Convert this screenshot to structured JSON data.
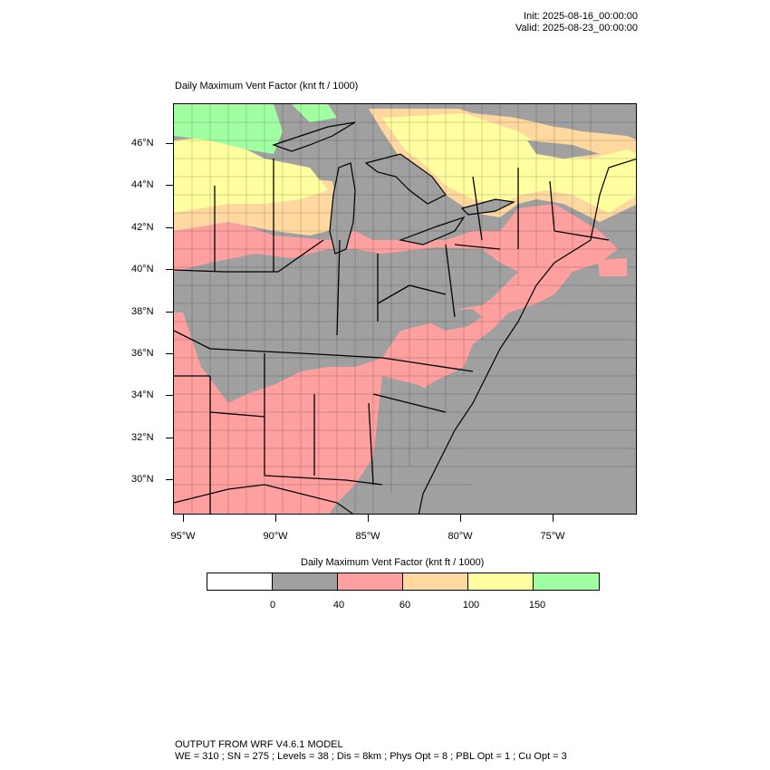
{
  "header": {
    "init": "Init: 2025-08-16_00:00:00",
    "valid": "Valid: 2025-08-23_00:00:00"
  },
  "map": {
    "title": "Daily Maximum Vent Factor   (knt ft / 1000)",
    "lat_labels": [
      "46°N",
      "44°N",
      "42°N",
      "40°N",
      "38°N",
      "36°N",
      "34°N",
      "32°N",
      "30°N"
    ],
    "lon_labels": [
      "95°W",
      "90°W",
      "85°W",
      "80°W",
      "75°W"
    ]
  },
  "colorbar": {
    "title": "Daily Maximum Vent Factor  (knt ft / 1000)",
    "colors": [
      "#ffffff",
      "#a0a0a0",
      "#ffa0a0",
      "#ffd8a0",
      "#ffffa0",
      "#a0ffa0"
    ],
    "labels": [
      "0",
      "40",
      "60",
      "100",
      "150"
    ]
  },
  "footer": {
    "line1": "OUTPUT FROM WRF V4.6.1 MODEL",
    "line2": "WE = 310 ; SN = 275 ; Levels = 38 ; Dis = 8km ; Phys Opt = 8 ; PBL Opt = 1 ; Cu Opt = 3"
  }
}
